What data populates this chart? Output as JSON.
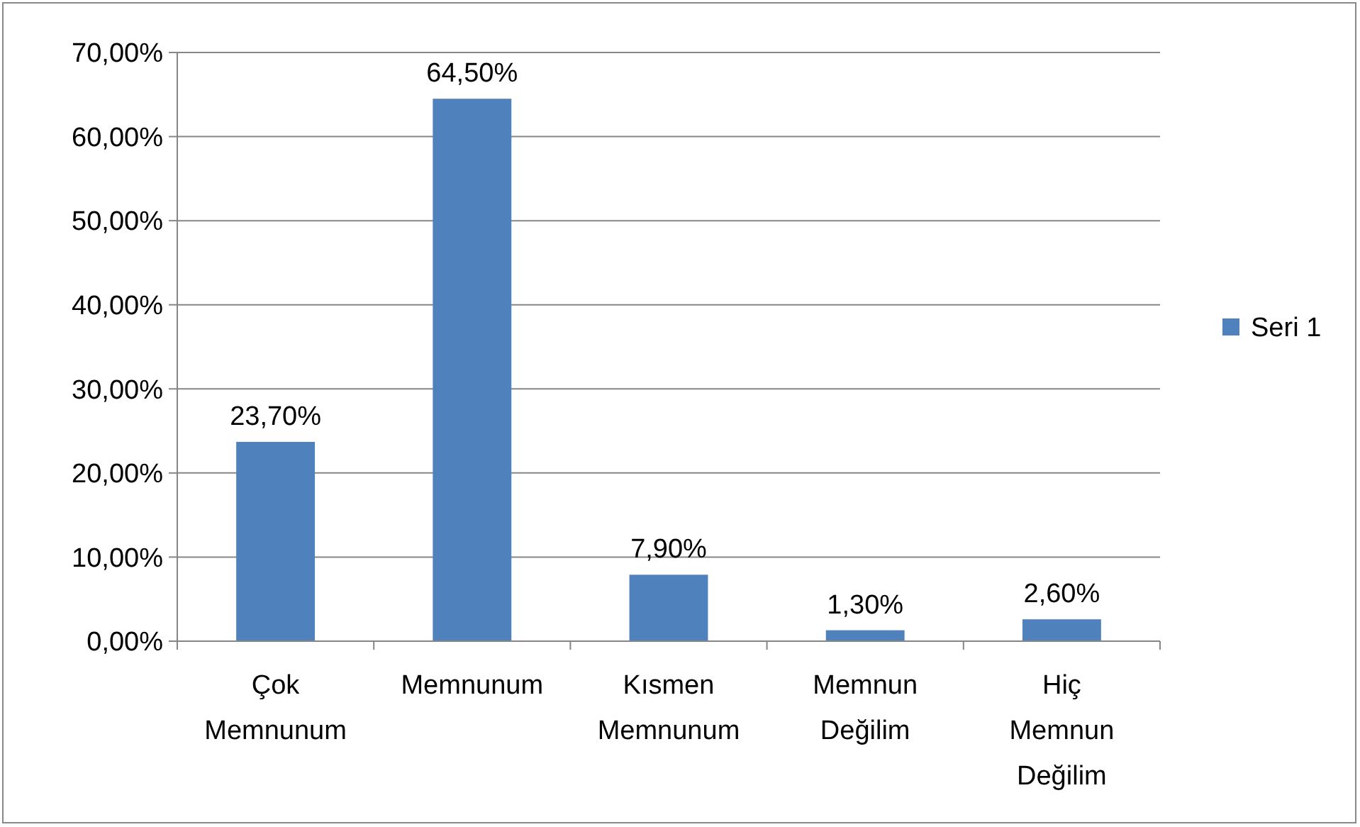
{
  "chart_data": {
    "type": "bar",
    "categories": [
      "Çok Memnunum",
      "Memnunum",
      "Kısmen Memnunum",
      "Memnun Değilim",
      "Hiç Memnun Değilim"
    ],
    "series": [
      {
        "name": "Seri 1",
        "color": "#4f81bd",
        "values": [
          23.7,
          64.5,
          7.9,
          1.3,
          2.6
        ],
        "value_labels": [
          "23,70%",
          "64,50%",
          "7,90%",
          "1,30%",
          "2,60%"
        ]
      }
    ],
    "ylim": [
      0,
      70
    ],
    "yticks": [
      {
        "value": 0,
        "label": "0,00%"
      },
      {
        "value": 10,
        "label": "10,00%"
      },
      {
        "value": 20,
        "label": "20,00%"
      },
      {
        "value": 30,
        "label": "30,00%"
      },
      {
        "value": 40,
        "label": "40,00%"
      },
      {
        "value": 50,
        "label": "50,00%"
      },
      {
        "value": 60,
        "label": "60,00%"
      },
      {
        "value": 70,
        "label": "70,00%"
      }
    ],
    "grid": "y",
    "legend": "right"
  }
}
